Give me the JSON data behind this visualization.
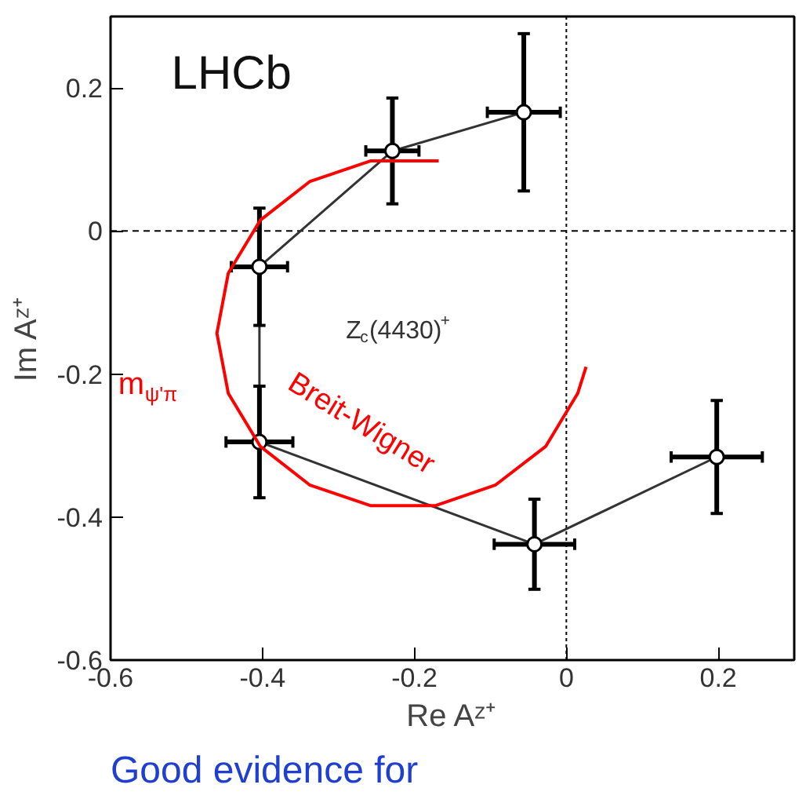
{
  "chart_data": {
    "type": "line",
    "xlabel": "Re Aᶻ⁺",
    "ylabel": "Im Aᶻ⁺",
    "xlim": [
      -0.6,
      0.3
    ],
    "ylim": [
      -0.6,
      0.3
    ],
    "xticks": [
      -0.6,
      -0.4,
      -0.2,
      0,
      0.2
    ],
    "yticks": [
      -0.6,
      -0.4,
      -0.2,
      0,
      0.2
    ],
    "grid": false,
    "series": [
      {
        "color": "#333333",
        "marker": "circle",
        "x": [
          -0.056,
          -0.229,
          -0.404,
          -0.404,
          -0.042,
          0.198
        ],
        "values": [
          0.166,
          0.112,
          -0.05,
          -0.295,
          -0.438,
          -0.316
        ],
        "errors": [
          0.11,
          0.074,
          0.082,
          0.078,
          0.063,
          0.079
        ],
        "xerrors": [
          0.048,
          0.035,
          0.037,
          0.044,
          0.053,
          0.06
        ]
      },
      {
        "name": "Breit-Wigner",
        "color": "#ff0000",
        "marker": "none",
        "x": [
          -0.168,
          -0.258,
          -0.338,
          -0.403,
          -0.445,
          -0.46,
          -0.445,
          -0.403,
          -0.338,
          -0.258,
          -0.172,
          -0.093,
          -0.027,
          0.015,
          0.026
        ],
        "values": [
          0.098,
          0.098,
          0.069,
          0.015,
          -0.059,
          -0.143,
          -0.227,
          -0.301,
          -0.355,
          -0.384,
          -0.384,
          -0.355,
          -0.301,
          -0.227,
          -0.19
        ]
      }
    ],
    "ref_lines": [
      {
        "axis": "x",
        "value": 0,
        "line_style": "dotted",
        "color": "#000000"
      },
      {
        "axis": "y",
        "value": 0,
        "line_style": "dashed",
        "color": "#000000"
      }
    ],
    "annotations": [
      "LHCb",
      "Z$_{c}$(4430)$^{+}$",
      "m$_{ψ'π}$",
      "Good evidence for"
    ]
  }
}
